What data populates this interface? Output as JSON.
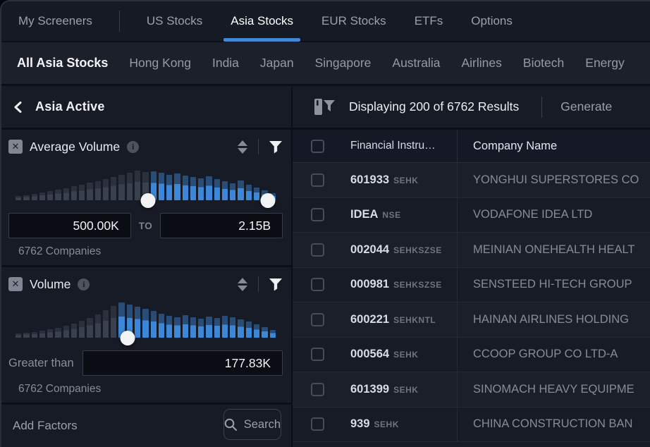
{
  "nav": {
    "tabs": [
      "My Screeners",
      "US Stocks",
      "Asia Stocks",
      "EUR Stocks",
      "ETFs",
      "Options"
    ],
    "active": "Asia Stocks"
  },
  "subnav": {
    "items": [
      "All Asia Stocks",
      "Hong Kong",
      "India",
      "Japan",
      "Singapore",
      "Australia",
      "Airlines",
      "Biotech",
      "Energy"
    ],
    "active": "All Asia Stocks"
  },
  "left_panel": {
    "title": "Asia Active",
    "filters": [
      {
        "title": "Average Volume",
        "type": "range",
        "min_value": "500.00K",
        "to_label": "TO",
        "max_value": "2.15B",
        "companies": "6762 Companies",
        "histogram": {
          "gray": [
            13,
            15,
            18,
            22,
            26,
            30,
            35,
            40,
            45,
            50,
            55,
            60,
            66,
            72,
            78,
            85,
            80
          ],
          "blue": [
            82,
            78,
            72,
            76,
            70,
            66,
            62,
            68,
            60,
            54,
            48,
            56,
            44,
            36,
            28,
            20
          ],
          "handles": [
            51,
            97
          ]
        }
      },
      {
        "title": "Volume",
        "type": "greater",
        "condition_label": "Greater than",
        "value": "177.83K",
        "companies": "6762 Companies",
        "histogram": {
          "gray": [
            12,
            14,
            17,
            20,
            24,
            28,
            34,
            40,
            48,
            56,
            66,
            78,
            90
          ],
          "blue": [
            100,
            95,
            89,
            83,
            76,
            69,
            63,
            59,
            65,
            59,
            55,
            61,
            57,
            63,
            59,
            53,
            47,
            39,
            31,
            22
          ],
          "handles": [
            43
          ]
        }
      }
    ],
    "footer": {
      "add_label": "Add Factors",
      "search_label": "Search"
    }
  },
  "results": {
    "status": "Displaying 200 of 6762 Results",
    "action": "Generate",
    "columns": [
      "Financial Instru…",
      "Company Name"
    ],
    "rows": [
      {
        "ticker": "601933",
        "exchange": "SEHK",
        "company": "YONGHUI SUPERSTORES CO"
      },
      {
        "ticker": "IDEA",
        "exchange": "NSE",
        "company": "VODAFONE IDEA LTD"
      },
      {
        "ticker": "002044",
        "exchange": "SEHKSZSE",
        "company": "MEINIAN ONEHEALTH HEALT"
      },
      {
        "ticker": "000981",
        "exchange": "SEHKSZSE",
        "company": "SENSTEED HI-TECH GROUP"
      },
      {
        "ticker": "600221",
        "exchange": "SEHKNTL",
        "company": "HAINAN AIRLINES HOLDING"
      },
      {
        "ticker": "000564",
        "exchange": "SEHK",
        "company": "CCOOP GROUP CO LTD-A"
      },
      {
        "ticker": "601399",
        "exchange": "SEHK",
        "company": "SINOMACH HEAVY EQUIPME"
      },
      {
        "ticker": "939",
        "exchange": "SEHK",
        "company": "CHINA CONSTRUCTION BAN"
      }
    ]
  },
  "colors": {
    "accent_blue": "#4087d6",
    "bar_blue": "#3d87d8",
    "bar_blue_cap": "#2a4d78",
    "bar_gray": "#3a414e",
    "surface": "#161a25",
    "panel": "#171b26"
  }
}
